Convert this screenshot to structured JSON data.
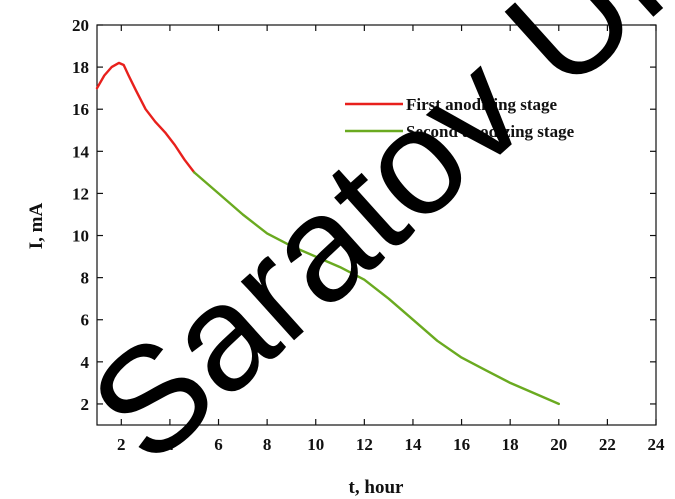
{
  "chart_data": {
    "type": "line",
    "title": "",
    "xlabel": "t, hour",
    "ylabel": "I, mA",
    "xlim": [
      1,
      24
    ],
    "ylim": [
      1,
      20
    ],
    "xticks": [
      2,
      4,
      6,
      8,
      10,
      12,
      14,
      16,
      18,
      20,
      22,
      24
    ],
    "yticks": [
      2,
      4,
      6,
      8,
      10,
      12,
      14,
      16,
      18,
      20
    ],
    "legend_position": "top-right",
    "grid": false,
    "series": [
      {
        "name": "First anodizing stage",
        "color": "#e8201c",
        "x": [
          1.0,
          1.3,
          1.6,
          1.9,
          2.1,
          2.3,
          2.6,
          3.0,
          3.4,
          3.8,
          4.2,
          4.6,
          5.0
        ],
        "y": [
          17.0,
          17.6,
          18.0,
          18.2,
          18.1,
          17.6,
          16.9,
          16.0,
          15.4,
          14.9,
          14.3,
          13.6,
          13.0
        ]
      },
      {
        "name": "Second anodizing stage",
        "color": "#6aaa20",
        "x": [
          5.0,
          6.0,
          7.0,
          8.0,
          9.0,
          10.0,
          11.0,
          12.0,
          13.0,
          14.0,
          15.0,
          16.0,
          17.0,
          18.0,
          19.0,
          20.0
        ],
        "y": [
          13.0,
          12.0,
          11.0,
          10.1,
          9.5,
          9.0,
          8.5,
          7.9,
          7.0,
          6.0,
          5.0,
          4.2,
          3.6,
          3.0,
          2.5,
          2.0
        ]
      }
    ]
  },
  "watermark": {
    "text": "Saratov Univer",
    "color": "#000000"
  }
}
